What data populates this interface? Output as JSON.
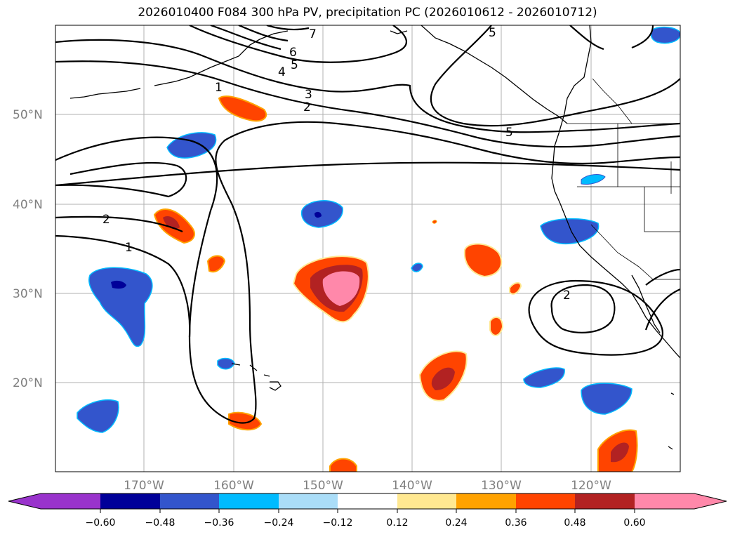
{
  "title": "2026010400 F084 300 hPa PV, precipitation PC (2026010612 - 2026010712)",
  "map": {
    "lat_ticks": [
      "20°N",
      "30°N",
      "40°N",
      "50°N"
    ],
    "lon_ticks": [
      "170°W",
      "160°W",
      "150°W",
      "140°W",
      "130°W",
      "120°W"
    ],
    "contour_labels": [
      "1",
      "2",
      "3",
      "4",
      "5",
      "6",
      "7",
      "5",
      "5",
      "2",
      "1",
      "2"
    ]
  },
  "colorbar": {
    "tick_labels": [
      "−0.60",
      "−0.48",
      "−0.36",
      "−0.24",
      "−0.12",
      "0.12",
      "0.24",
      "0.36",
      "0.48",
      "0.60"
    ],
    "colors": [
      "#9933cc",
      "#000099",
      "#3355cc",
      "#00bbff",
      "#aaddf8",
      "#ffffff",
      "#ffe891",
      "#ffa200",
      "#ff4400",
      "#b22222",
      "#ff88aa"
    ]
  }
}
